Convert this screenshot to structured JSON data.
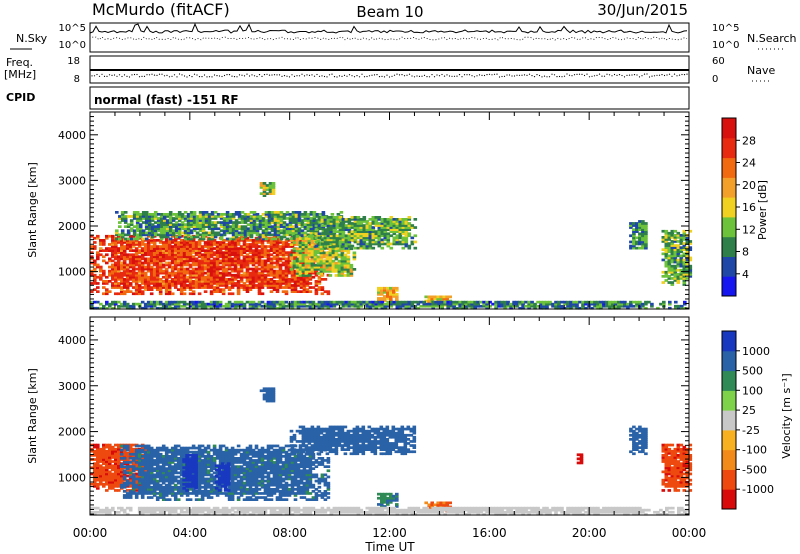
{
  "header": {
    "station": "McMurdo (fitACF)",
    "beam": "Beam 10",
    "date": "30/Jun/2015"
  },
  "aux_panels": {
    "nsky_label": "N.Sky",
    "nsky_ticks": [
      "10^5",
      "10^0"
    ],
    "nsearch_label": "N.Search",
    "nsearch_ticks": [
      "10^5",
      "10^0"
    ],
    "freq_label": "Freq.",
    "freq_unit": "[MHz]",
    "freq_ticks": [
      "18",
      "8"
    ],
    "nave_label": "Nave",
    "nave_ticks": [
      "60",
      "0"
    ],
    "cpid_label": "CPID",
    "cpid_text": "normal (fast) -151 RF"
  },
  "colors": {
    "power_scale": [
      "#1616f0",
      "#1f47a8",
      "#2e7f4a",
      "#6cc23a",
      "#f0d020",
      "#f2a02a",
      "#f26a10",
      "#e82a10",
      "#d8100e"
    ],
    "velocity_scale": [
      "#d80a0a",
      "#ee4a10",
      "#f28a1a",
      "#f7b020",
      "#c8c8c8",
      "#7ed24a",
      "#2f8a56",
      "#2a62a8",
      "#1838c0"
    ]
  },
  "chart_data": [
    {
      "type": "heatmap",
      "title": "Power",
      "xlabel": "",
      "ylabel": "Slant Range [km]",
      "xlim": [
        "00:00",
        "24:00"
      ],
      "ylim": [
        180,
        4500
      ],
      "x_ticks": [
        "00:00",
        "04:00",
        "08:00",
        "12:00",
        "16:00",
        "20:00",
        "00:00"
      ],
      "y_ticks": [
        "1000",
        "2000",
        "3000",
        "4000"
      ],
      "colorbar": {
        "label": "Power [dB]",
        "ticks": [
          "4",
          "8",
          "12",
          "16",
          "20",
          "24",
          "28"
        ],
        "range": [
          0,
          32
        ]
      },
      "echo_regions": [
        {
          "time_start": 0.0,
          "time_end": 9.5,
          "range_min": 500,
          "range_max": 1800,
          "value": 26
        },
        {
          "time_start": 1.0,
          "time_end": 10.0,
          "range_min": 1700,
          "range_max": 2300,
          "value": 10
        },
        {
          "time_start": 6.8,
          "time_end": 7.4,
          "range_min": 2650,
          "range_max": 2950,
          "value": 14
        },
        {
          "time_start": 8.0,
          "time_end": 10.6,
          "range_min": 900,
          "range_max": 1800,
          "value": 14
        },
        {
          "time_start": 9.0,
          "time_end": 13.0,
          "range_min": 1500,
          "range_max": 2200,
          "value": 11
        },
        {
          "time_start": 11.5,
          "time_end": 12.3,
          "range_min": 350,
          "range_max": 650,
          "value": 18
        },
        {
          "time_start": 13.4,
          "time_end": 14.4,
          "range_min": 250,
          "range_max": 450,
          "value": 18
        },
        {
          "time_start": 21.6,
          "time_end": 22.3,
          "range_min": 1500,
          "range_max": 2100,
          "value": 9
        },
        {
          "time_start": 22.9,
          "time_end": 24.0,
          "range_min": 700,
          "range_max": 1900,
          "value": 11
        },
        {
          "time_start": 0.0,
          "time_end": 24.0,
          "range_min": 180,
          "range_max": 330,
          "value": 8
        }
      ]
    },
    {
      "type": "heatmap",
      "title": "Velocity",
      "xlabel": "Time UT",
      "ylabel": "Slant Range [km]",
      "xlim": [
        "00:00",
        "24:00"
      ],
      "ylim": [
        180,
        4500
      ],
      "x_ticks": [
        "00:00",
        "04:00",
        "08:00",
        "12:00",
        "16:00",
        "20:00",
        "00:00"
      ],
      "y_ticks": [
        "1000",
        "2000",
        "3000",
        "4000"
      ],
      "colorbar": {
        "label": "Velocity [m s⁻¹]",
        "ticks": [
          "1000",
          "500",
          "100",
          "25",
          "-25",
          "-100",
          "-500",
          "-1000"
        ],
        "range": [
          -1000,
          1000
        ]
      },
      "echo_regions": [
        {
          "time_start": 0.0,
          "time_end": 2.4,
          "range_min": 700,
          "range_max": 1700,
          "value": -160
        },
        {
          "time_start": 1.2,
          "time_end": 9.5,
          "range_min": 500,
          "range_max": 1700,
          "value": 80
        },
        {
          "time_start": 3.7,
          "time_end": 4.3,
          "range_min": 700,
          "range_max": 1500,
          "value": 700
        },
        {
          "time_start": 5.0,
          "time_end": 5.6,
          "range_min": 700,
          "range_max": 1300,
          "value": 600
        },
        {
          "time_start": 6.8,
          "time_end": 7.4,
          "range_min": 2650,
          "range_max": 2950,
          "value": 120
        },
        {
          "time_start": 8.0,
          "time_end": 13.0,
          "range_min": 1500,
          "range_max": 2100,
          "value": 130
        },
        {
          "time_start": 11.5,
          "time_end": 12.3,
          "range_min": 350,
          "range_max": 650,
          "value": 40
        },
        {
          "time_start": 13.4,
          "time_end": 14.4,
          "range_min": 250,
          "range_max": 450,
          "value": -60
        },
        {
          "time_start": 19.5,
          "time_end": 19.7,
          "range_min": 1300,
          "range_max": 1500,
          "value": -700
        },
        {
          "time_start": 21.6,
          "time_end": 22.3,
          "range_min": 1500,
          "range_max": 2100,
          "value": 120
        },
        {
          "time_start": 22.9,
          "time_end": 24.0,
          "range_min": 700,
          "range_max": 1700,
          "value": -160
        },
        {
          "time_start": 0.0,
          "time_end": 24.0,
          "range_min": 180,
          "range_max": 330,
          "value": 0
        }
      ]
    }
  ]
}
